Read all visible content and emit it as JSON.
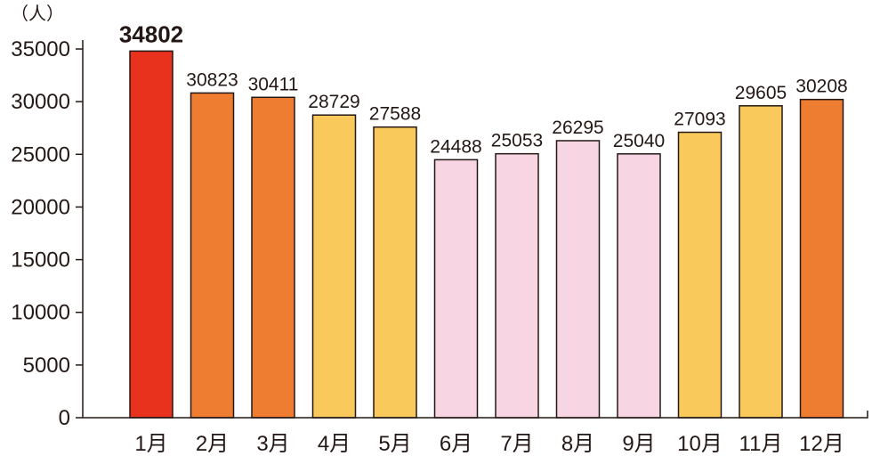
{
  "chart_data": {
    "type": "bar",
    "unit": "（人）",
    "categories": [
      "1月",
      "2月",
      "3月",
      "4月",
      "5月",
      "6月",
      "7月",
      "8月",
      "9月",
      "10月",
      "11月",
      "12月"
    ],
    "values": [
      34802,
      30823,
      30411,
      28729,
      27588,
      24488,
      25053,
      26295,
      25040,
      27093,
      29605,
      30208
    ],
    "bar_colors": [
      "#e8321e",
      "#ee7d31",
      "#ee7d31",
      "#fac95b",
      "#fac95b",
      "#f7d5e2",
      "#f7d5e2",
      "#f7d5e2",
      "#f7d5e2",
      "#fac95b",
      "#fac95b",
      "#ee7d31"
    ],
    "ylim": [
      0,
      35000
    ],
    "yticks": [
      0,
      5000,
      10000,
      15000,
      20000,
      25000,
      30000,
      35000
    ],
    "grid": false,
    "legend": "none"
  }
}
